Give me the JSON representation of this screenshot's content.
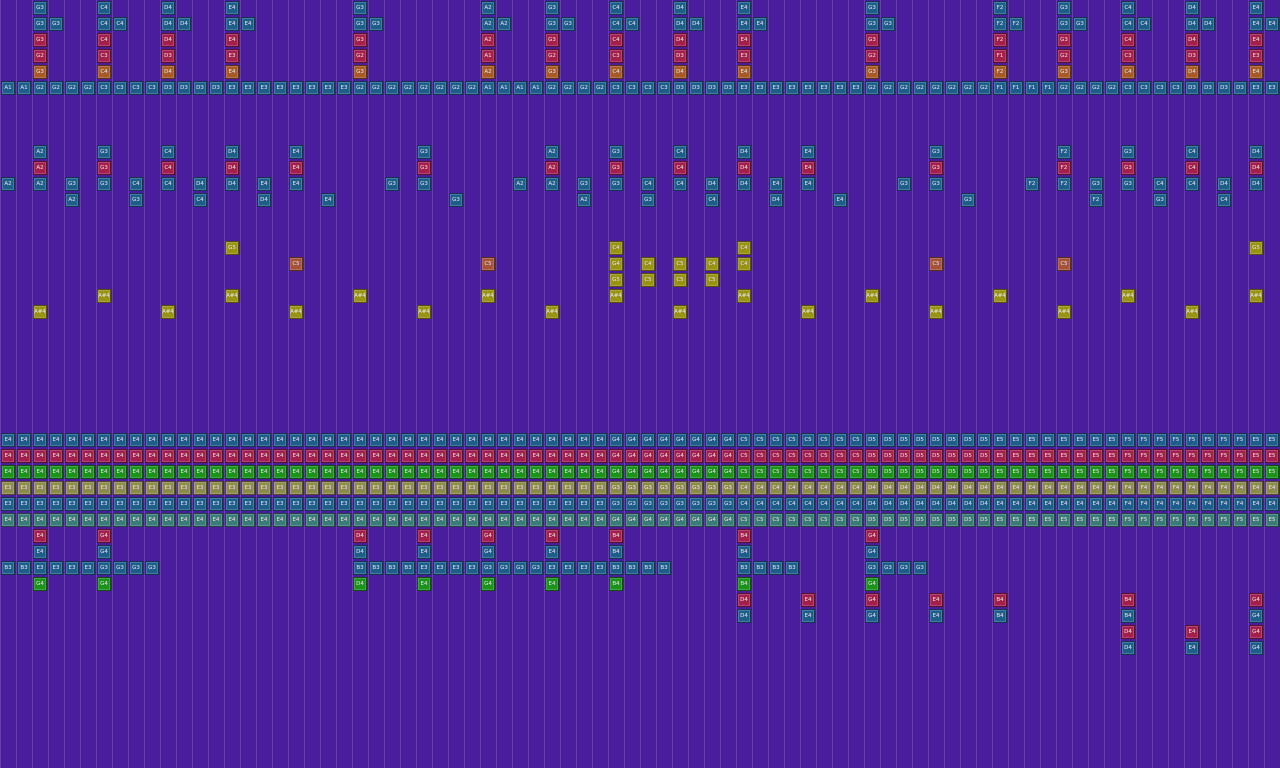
{
  "rows": [
    {
      "color": "#1f5e8c",
      "cells": {
        "2": "G3",
        "6": "C4",
        "10": "D4",
        "14": "E4",
        "22": "G3",
        "30": "A2",
        "34": "G3",
        "38": "C4",
        "42": "D4",
        "46": "E4",
        "54": "G3",
        "62": "F2",
        "66": "G3",
        "70": "C4",
        "74": "D4",
        "78": "E4"
      }
    },
    {
      "color": "#1f5e8c",
      "cells": {
        "2": "G3",
        "3": "G3",
        "6": "C4",
        "7": "C4",
        "10": "D4",
        "11": "D4",
        "14": "E4",
        "15": "E4",
        "22": "G3",
        "23": "G3",
        "30": "A2",
        "31": "A2",
        "34": "G3",
        "35": "G3",
        "38": "C4",
        "39": "C4",
        "42": "D4",
        "43": "D4",
        "46": "E4",
        "47": "E4",
        "54": "G3",
        "55": "G3",
        "62": "F2",
        "63": "F2",
        "66": "G3",
        "67": "G3",
        "70": "C4",
        "71": "C4",
        "74": "D4",
        "75": "D4",
        "78": "E4",
        "79": "E4"
      }
    },
    {
      "color": "#a3204e",
      "cells": {
        "2": "G3",
        "6": "C4",
        "10": "D4",
        "14": "E4",
        "22": "G3",
        "30": "A2",
        "34": "G3",
        "38": "C4",
        "42": "D4",
        "46": "E4",
        "54": "G3",
        "62": "F2",
        "66": "G3",
        "70": "C4",
        "74": "D4",
        "78": "E4"
      }
    },
    {
      "color": "#a3204e",
      "cells": {
        "2": "G2",
        "6": "C3",
        "10": "D3",
        "14": "E3",
        "22": "G2",
        "30": "A1",
        "34": "G2",
        "38": "C3",
        "42": "D3",
        "46": "E3",
        "54": "G2",
        "62": "F1",
        "66": "G2",
        "70": "C3",
        "74": "D3",
        "78": "E3"
      }
    },
    {
      "color": "#a65a28",
      "cells": {
        "2": "G3",
        "6": "C4",
        "10": "D4",
        "14": "E4",
        "22": "G3",
        "30": "A2",
        "34": "G3",
        "38": "C4",
        "42": "D4",
        "46": "E4",
        "54": "G3",
        "62": "F2",
        "66": "G3",
        "70": "C4",
        "74": "D4",
        "78": "E4"
      }
    },
    {
      "color": "#1f5e8c",
      "cells": [
        "A1",
        "A1",
        "G2",
        "G2",
        "G2",
        "G2",
        "C3",
        "C3",
        "C3",
        "C3",
        "D3",
        "D3",
        "D3",
        "D3",
        "E3",
        "E3",
        "E3",
        "E3",
        "E3",
        "E3",
        "E3",
        "E3",
        "G2",
        "G2",
        "G2",
        "G2",
        "G2",
        "G2",
        "G2",
        "G2",
        "A1",
        "A1",
        "A1",
        "A1",
        "G2",
        "G2",
        "G2",
        "G2",
        "C3",
        "C3",
        "C3",
        "C3",
        "D3",
        "D3",
        "D3",
        "D3",
        "E3",
        "E3",
        "E3",
        "E3",
        "E3",
        "E3",
        "E3",
        "E3",
        "G2",
        "G2",
        "G2",
        "G2",
        "G2",
        "G2",
        "G2",
        "G2",
        "F1",
        "F1",
        "F1",
        "F1",
        "G2",
        "G2",
        "G2",
        "G2",
        "C3",
        "C3",
        "C3",
        "C3",
        "D3",
        "D3",
        "D3",
        "D3",
        "E3",
        "E3"
      ]
    },
    null,
    null,
    null,
    {
      "color": "#1f5e8c",
      "cells": {
        "2": "A2",
        "6": "G3",
        "10": "C4",
        "14": "D4",
        "18": "E4",
        "26": "G3",
        "34": "A2",
        "38": "G3",
        "42": "C4",
        "46": "D4",
        "50": "E4",
        "58": "G3",
        "66": "F2",
        "70": "G3",
        "74": "C4",
        "78": "D4"
      }
    },
    {
      "color": "#a3204e",
      "cells": {
        "2": "A2",
        "6": "G3",
        "10": "C4",
        "14": "D4",
        "18": "E4",
        "26": "G3",
        "34": "A2",
        "38": "G3",
        "42": "C4",
        "46": "D4",
        "50": "E4",
        "58": "G3",
        "66": "F2",
        "70": "G3",
        "74": "C4",
        "78": "D4"
      }
    },
    {
      "color": "#1f5e8c",
      "cells": {
        "0": "A2",
        "2": "A2",
        "4": "G3",
        "6": "G3",
        "8": "C4",
        "10": "C4",
        "12": "D4",
        "14": "D4",
        "16": "E4",
        "18": "E4",
        "24": "G3",
        "26": "G3",
        "32": "A2",
        "34": "A2",
        "36": "G3",
        "38": "G3",
        "40": "C4",
        "42": "C4",
        "44": "D4",
        "46": "D4",
        "48": "E4",
        "50": "E4",
        "56": "G3",
        "58": "G3",
        "64": "F2",
        "66": "F2",
        "68": "G3",
        "70": "G3",
        "72": "C4",
        "74": "C4",
        "76": "D4",
        "78": "D4"
      }
    },
    {
      "color": "#1f5e8c",
      "cells": {
        "4": "A2",
        "8": "G3",
        "12": "C4",
        "16": "D4",
        "20": "E4",
        "28": "G3",
        "36": "A2",
        "40": "G3",
        "44": "C4",
        "48": "D4",
        "52": "E4",
        "60": "G3",
        "68": "F2",
        "72": "G3",
        "76": "C4"
      }
    },
    null,
    null,
    {
      "color": "#9a9214",
      "cells": {
        "14": "G5",
        "38": "C4",
        "46": "C4",
        "78": "G5"
      }
    },
    {
      "color": "#9a9214",
      "cells": {
        "18": {
          "text": "C5",
          "color": "#a4523a"
        },
        "30": {
          "text": "C5",
          "color": "#a4523a"
        },
        "38": "G4",
        "40": "C4",
        "42": "C5",
        "44": "C4",
        "46": "C4",
        "58": {
          "text": "C5",
          "color": "#a4523a"
        },
        "66": {
          "text": "C5",
          "color": "#a4523a"
        }
      }
    },
    {
      "color": "#9a9214",
      "cells": {
        "38": "G5",
        "40": "C5",
        "42": "C5",
        "44": "C5"
      }
    },
    {
      "color": "#9a9214",
      "cells": {
        "6": "A#4",
        "14": "A#4",
        "22": "A#4",
        "30": "A#4",
        "38": "A#4",
        "46": "A#4",
        "54": "A#4",
        "62": "A#4",
        "70": "A#4",
        "78": "A#4"
      }
    },
    {
      "color": "#9a9214",
      "cells": {
        "2": "A#4",
        "10": "A#4",
        "18": "A#4",
        "26": "A#4",
        "34": "A#4",
        "42": "A#4",
        "50": "A#4",
        "58": "A#4",
        "66": "A#4",
        "74": "A#4"
      }
    },
    null,
    null,
    null,
    null,
    null,
    null,
    null,
    {
      "color": "#1f5e8c",
      "cells": [
        "E4",
        "E4",
        "E4",
        "E4",
        "E4",
        "E4",
        "E4",
        "E4",
        "E4",
        "E4",
        "E4",
        "E4",
        "E4",
        "E4",
        "E4",
        "E4",
        "E4",
        "E4",
        "E4",
        "E4",
        "E4",
        "E4",
        "E4",
        "E4",
        "E4",
        "E4",
        "E4",
        "E4",
        "E4",
        "E4",
        "E4",
        "E4",
        "E4",
        "E4",
        "E4",
        "E4",
        "E4",
        "E4",
        "G4",
        "G4",
        "G4",
        "G4",
        "G4",
        "G4",
        "G4",
        "G4",
        "C5",
        "C5",
        "C5",
        "C5",
        "C5",
        "C5",
        "C5",
        "C5",
        "D5",
        "D5",
        "D5",
        "D5",
        "D5",
        "D5",
        "D5",
        "D5",
        "E5",
        "E5",
        "E5",
        "E5",
        "E5",
        "E5",
        "E5",
        "E5",
        "F5",
        "F5",
        "F5",
        "F5",
        "F5",
        "F5",
        "F5",
        "F5",
        "E5",
        "E5"
      ]
    },
    {
      "color": "#a3204e",
      "cells": [
        "E4",
        "E4",
        "E4",
        "E4",
        "E4",
        "E4",
        "E4",
        "E4",
        "E4",
        "E4",
        "E4",
        "E4",
        "E4",
        "E4",
        "E4",
        "E4",
        "E4",
        "E4",
        "E4",
        "E4",
        "E4",
        "E4",
        "E4",
        "E4",
        "E4",
        "E4",
        "E4",
        "E4",
        "E4",
        "E4",
        "E4",
        "E4",
        "E4",
        "E4",
        "E4",
        "E4",
        "E4",
        "E4",
        "G4",
        "G4",
        "G4",
        "G4",
        "G4",
        "G4",
        "G4",
        "G4",
        "C5",
        "C5",
        "C5",
        "C5",
        "C5",
        "C5",
        "C5",
        "C5",
        "D5",
        "D5",
        "D5",
        "D5",
        "D5",
        "D5",
        "D5",
        "D5",
        "E5",
        "E5",
        "E5",
        "E5",
        "E5",
        "E5",
        "E5",
        "E5",
        "F5",
        "F5",
        "F5",
        "F5",
        "F5",
        "F5",
        "F5",
        "F5",
        "E5",
        "E5"
      ]
    },
    {
      "color": "#1c921c",
      "cells": [
        "E4",
        "E4",
        "E4",
        "E4",
        "E4",
        "E4",
        "E4",
        "E4",
        "E4",
        "E4",
        "E4",
        "E4",
        "E4",
        "E4",
        "E4",
        "E4",
        "E4",
        "E4",
        "E4",
        "E4",
        "E4",
        "E4",
        "E4",
        "E4",
        "E4",
        "E4",
        "E4",
        "E4",
        "E4",
        "E4",
        "E4",
        "E4",
        "E4",
        "E4",
        "E4",
        "E4",
        "E4",
        "E4",
        "G4",
        "G4",
        "G4",
        "G4",
        "G4",
        "G4",
        "G4",
        "G4",
        "C5",
        "C5",
        "C5",
        "C5",
        "C5",
        "C5",
        "C5",
        "C5",
        "D5",
        "D5",
        "D5",
        "D5",
        "D5",
        "D5",
        "D5",
        "D5",
        "E5",
        "E5",
        "E5",
        "E5",
        "E5",
        "E5",
        "E5",
        "E5",
        "F5",
        "F5",
        "F5",
        "F5",
        "F5",
        "F5",
        "F5",
        "F5",
        "E5",
        "E5"
      ]
    },
    {
      "color": "#8c8a4e",
      "cells": [
        "E3",
        "E3",
        "E3",
        "E3",
        "E3",
        "E3",
        "E3",
        "E3",
        "E3",
        "E3",
        "E3",
        "E3",
        "E3",
        "E3",
        "E3",
        "E3",
        "E3",
        "E3",
        "E3",
        "E3",
        "E3",
        "E3",
        "E3",
        "E3",
        "E3",
        "E3",
        "E3",
        "E3",
        "E3",
        "E3",
        "E3",
        "E3",
        "E3",
        "E3",
        "E3",
        "E3",
        "E3",
        "E3",
        "G3",
        "G3",
        "G3",
        "G3",
        "G3",
        "G3",
        "G3",
        "G3",
        "C4",
        "C4",
        "C4",
        "C4",
        "C4",
        "C4",
        "C4",
        "C4",
        "D4",
        "D4",
        "D4",
        "D4",
        "D4",
        "D4",
        "D4",
        "D4",
        "E4",
        "E4",
        "E4",
        "E4",
        "E4",
        "E4",
        "E4",
        "E4",
        "F4",
        "F4",
        "F4",
        "F4",
        "F4",
        "F4",
        "F4",
        "F4",
        "E4",
        "E4"
      ]
    },
    {
      "color": "#1f5e8c",
      "cells": [
        "E3",
        "E3",
        "E3",
        "E3",
        "E3",
        "E3",
        "E3",
        "E3",
        "E3",
        "E3",
        "E3",
        "E3",
        "E3",
        "E3",
        "E3",
        "E3",
        "E3",
        "E3",
        "E3",
        "E3",
        "E3",
        "E3",
        "E3",
        "E3",
        "E3",
        "E3",
        "E3",
        "E3",
        "E3",
        "E3",
        "E3",
        "E3",
        "E3",
        "E3",
        "E3",
        "E3",
        "E3",
        "E3",
        "G3",
        "G3",
        "G3",
        "G3",
        "G3",
        "G3",
        "G3",
        "G3",
        "C4",
        "C4",
        "C4",
        "C4",
        "C4",
        "C4",
        "C4",
        "C4",
        "D4",
        "D4",
        "D4",
        "D4",
        "D4",
        "D4",
        "D4",
        "D4",
        "E4",
        "E4",
        "E4",
        "E4",
        "E4",
        "E4",
        "E4",
        "E4",
        "F4",
        "F4",
        "F4",
        "F4",
        "F4",
        "F4",
        "F4",
        "F4",
        "E4",
        "E4"
      ]
    },
    {
      "color": "#3c7a78",
      "cells": [
        "E4",
        "E4",
        "E4",
        "E4",
        "E4",
        "E4",
        "E4",
        "E4",
        "E4",
        "E4",
        "E4",
        "E4",
        "E4",
        "E4",
        "E4",
        "E4",
        "E4",
        "E4",
        "E4",
        "E4",
        "E4",
        "E4",
        "E4",
        "E4",
        "E4",
        "E4",
        "E4",
        "E4",
        "E4",
        "E4",
        "E4",
        "E4",
        "E4",
        "E4",
        "E4",
        "E4",
        "E4",
        "E4",
        "G4",
        "G4",
        "G4",
        "G4",
        "G4",
        "G4",
        "G4",
        "G4",
        "C5",
        "C5",
        "C5",
        "C5",
        "C5",
        "C5",
        "C5",
        "C5",
        "D5",
        "D5",
        "D5",
        "D5",
        "D5",
        "D5",
        "D5",
        "D5",
        "E5",
        "E5",
        "E5",
        "E5",
        "E5",
        "E5",
        "E5",
        "E5",
        "F5",
        "F5",
        "F5",
        "F5",
        "F5",
        "F5",
        "F5",
        "F5",
        "E5",
        "E5"
      ]
    },
    {
      "color": "#a3204e",
      "cells": {
        "2": "E4",
        "6": "G4",
        "22": "D4",
        "26": "E4",
        "30": "G4",
        "34": "E4",
        "38": "B4",
        "46": "B4",
        "54": "G4"
      }
    },
    {
      "color": "#1f5e8c",
      "cells": {
        "2": "E4",
        "6": "G4",
        "22": "D4",
        "26": "E4",
        "30": "G4",
        "34": "E4",
        "38": "B4",
        "46": "B4",
        "54": "G4"
      }
    },
    {
      "color": "#1f5e8c",
      "cells": {
        "0": "B3",
        "1": "B3",
        "2": "E3",
        "3": "E3",
        "4": "E3",
        "5": "E3",
        "6": "G3",
        "7": "G3",
        "8": "G3",
        "9": "G3",
        "22": "B3",
        "23": "B3",
        "24": "B3",
        "25": "B3",
        "26": "E3",
        "27": "E3",
        "28": "E3",
        "29": "E3",
        "30": "G3",
        "31": "G3",
        "32": "G3",
        "33": "G3",
        "34": "E3",
        "35": "E3",
        "36": "E3",
        "37": "E3",
        "38": "B3",
        "39": "B3",
        "40": "B3",
        "41": "B3",
        "46": "B3",
        "47": "B3",
        "48": "B3",
        "49": "B3",
        "54": "G3",
        "55": "G3",
        "56": "G3",
        "57": "G3"
      }
    },
    {
      "color": "#1c921c",
      "cells": {
        "2": "G4",
        "6": "G4",
        "22": "D4",
        "26": "E4",
        "30": "G4",
        "34": "E4",
        "38": "B4",
        "46": "B4",
        "54": "G4"
      }
    },
    {
      "color": "#a3204e",
      "cells": {
        "46": "D4",
        "50": "E4",
        "54": "G4",
        "58": "E4",
        "62": "B4",
        "70": "B4",
        "78": "G4"
      }
    },
    {
      "color": "#1f5e8c",
      "cells": {
        "46": "D4",
        "50": "E4",
        "54": "G4",
        "58": "E4",
        "62": "B4",
        "70": "B4",
        "78": "G4"
      }
    },
    {
      "color": "#a3204e",
      "cells": {
        "70": "D4",
        "74": "E4",
        "78": "G4"
      }
    },
    {
      "color": "#1f5e8c",
      "cells": {
        "70": "D4",
        "74": "E4",
        "78": "G4"
      }
    },
    null,
    null,
    null,
    null,
    null,
    null,
    null
  ]
}
